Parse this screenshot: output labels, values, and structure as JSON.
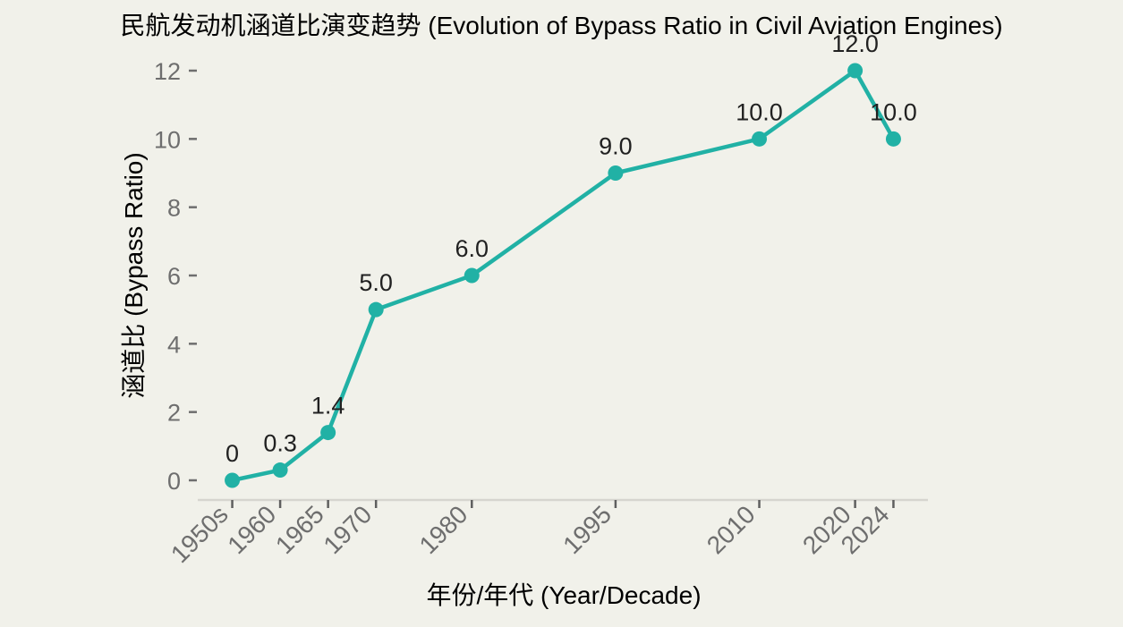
{
  "figure": {
    "background_color": "#f1f1ea"
  },
  "chart_data": {
    "type": "line",
    "title": "民航发动机涵道比演变趋势 (Evolution of Bypass Ratio in Civil Aviation Engines)",
    "xlabel": "年份/年代 (Year/Decade)",
    "ylabel": "涵道比 (Bypass Ratio)",
    "categories": [
      "1950s",
      "1960",
      "1965",
      "1970",
      "1980",
      "1995",
      "2010",
      "2020",
      "2024"
    ],
    "x_numeric": [
      1955,
      1960,
      1965,
      1970,
      1980,
      1995,
      2010,
      2020,
      2024
    ],
    "values": [
      0,
      0.3,
      1.4,
      5.0,
      6.0,
      9.0,
      10.0,
      12.0,
      10.0
    ],
    "point_labels": [
      "0",
      "0.3",
      "1.4",
      "5.0",
      "6.0",
      "9.0",
      "10.0",
      "12.0",
      "10.0"
    ],
    "y_tick_labels": [
      "0",
      "2",
      "4",
      "6",
      "8",
      "10",
      "12"
    ],
    "y_tick_values": [
      0,
      2,
      4,
      6,
      8,
      10,
      12
    ],
    "ylim": [
      0,
      12
    ],
    "xlim": [
      1951.4,
      2027.6
    ],
    "x_tick_rotation_deg": 45,
    "grid": false,
    "legend": "none",
    "line_color": "#21b1a5",
    "marker": "circle",
    "marker_color": "#21b1a5",
    "text_color": "#212121",
    "tick_label_color": "#6e6e6e",
    "tick_mark_color": "#5f5f5f",
    "axis_line_color": "#d6d5cf"
  }
}
